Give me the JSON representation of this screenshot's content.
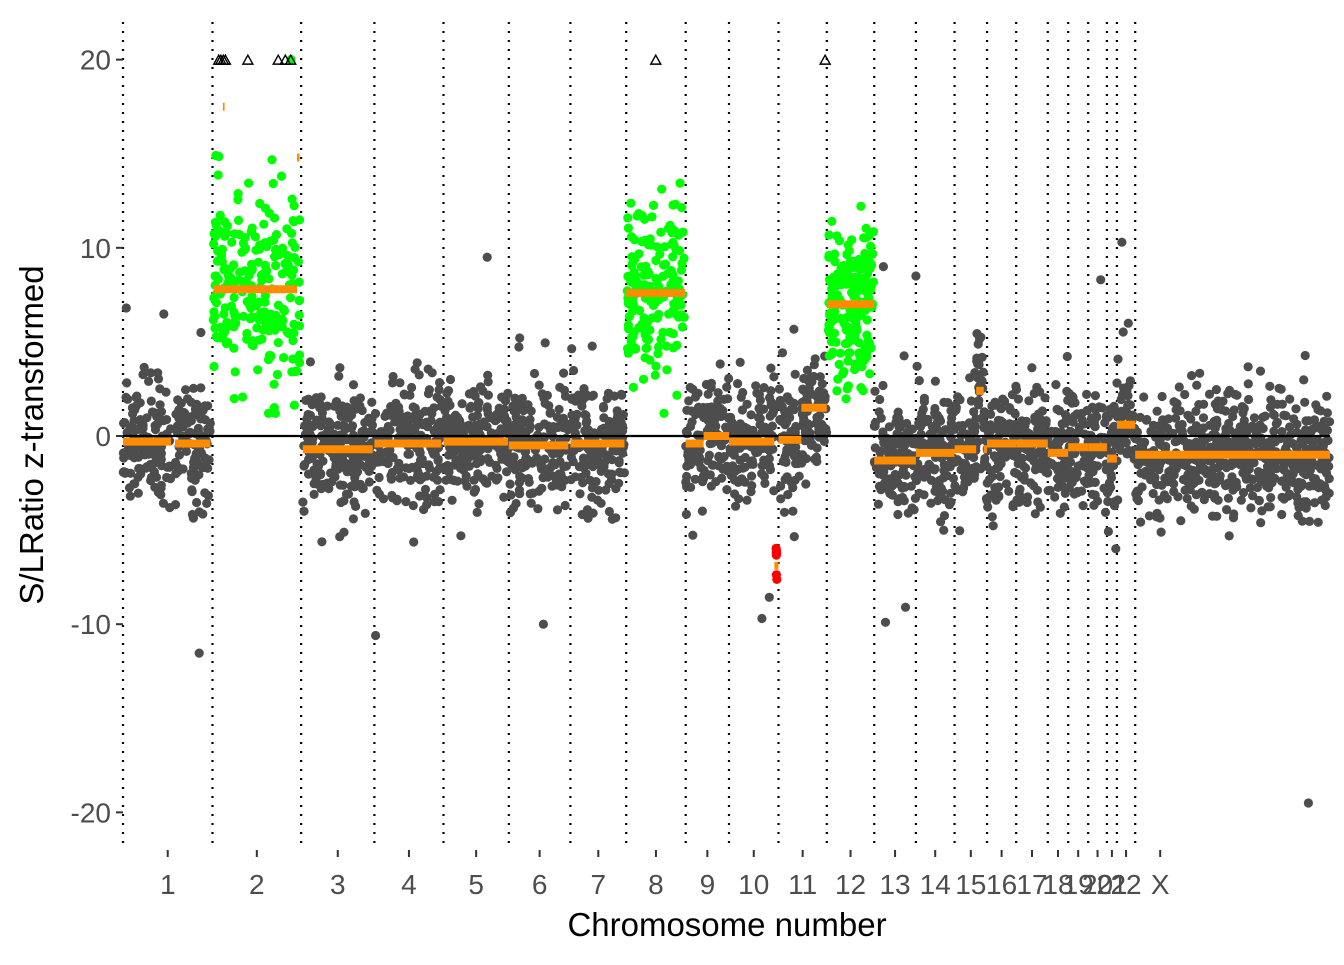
{
  "chart_data": {
    "type": "scatter",
    "title": "",
    "xlabel": "Chromosome number",
    "ylabel": "S/LRatio z-transformed",
    "ylim": [
      -22,
      22
    ],
    "y_ticks": [
      -20,
      -10,
      0,
      10,
      20
    ],
    "y_tick_labels": [
      "-20",
      "-10",
      "0",
      "10",
      "20"
    ],
    "x_span": [
      0,
      2900
    ],
    "reference_line_y": 0,
    "grid": false,
    "legend": "none",
    "colors": {
      "normal": "#4d4d4d",
      "gain": "#00ff00",
      "loss": "#ff0000",
      "segment": "#ff8c00",
      "outlier_marker": "#000000",
      "divider": "#000000"
    },
    "chromosomes": [
      {
        "label": "1",
        "start": 0,
        "end": 215
      },
      {
        "label": "2",
        "start": 215,
        "end": 428
      },
      {
        "label": "3",
        "start": 428,
        "end": 604
      },
      {
        "label": "4",
        "start": 604,
        "end": 770
      },
      {
        "label": "5",
        "start": 770,
        "end": 927
      },
      {
        "label": "6",
        "start": 927,
        "end": 1075
      },
      {
        "label": "7",
        "start": 1075,
        "end": 1209
      },
      {
        "label": "8",
        "start": 1209,
        "end": 1352
      },
      {
        "label": "9",
        "start": 1352,
        "end": 1456
      },
      {
        "label": "10",
        "start": 1456,
        "end": 1575
      },
      {
        "label": "11",
        "start": 1575,
        "end": 1691
      },
      {
        "label": "12",
        "start": 1691,
        "end": 1805
      },
      {
        "label": "13",
        "start": 1805,
        "end": 1905
      },
      {
        "label": "14",
        "start": 1905,
        "end": 1998
      },
      {
        "label": "15",
        "start": 1998,
        "end": 2076
      },
      {
        "label": "16",
        "start": 2076,
        "end": 2146
      },
      {
        "label": "17",
        "start": 2146,
        "end": 2222
      },
      {
        "label": "18",
        "start": 2222,
        "end": 2271
      },
      {
        "label": "19",
        "start": 2271,
        "end": 2319
      },
      {
        "label": "20",
        "start": 2319,
        "end": 2364
      },
      {
        "label": "21",
        "start": 2364,
        "end": 2388
      },
      {
        "label": "22",
        "start": 2388,
        "end": 2432
      },
      {
        "label": "X",
        "start": 2432,
        "end": 2900
      }
    ],
    "segments": [
      {
        "start": 0,
        "end": 115,
        "y": -0.3
      },
      {
        "start": 125,
        "end": 210,
        "y": -0.4
      },
      {
        "start": 218,
        "end": 240,
        "y": 7.8
      },
      {
        "start": 240,
        "end": 418,
        "y": 7.8
      },
      {
        "start": 240,
        "end": 244,
        "y": 17.5
      },
      {
        "start": 418,
        "end": 424,
        "y": 14.8
      },
      {
        "start": 432,
        "end": 600,
        "y": -0.7
      },
      {
        "start": 604,
        "end": 765,
        "y": -0.4
      },
      {
        "start": 770,
        "end": 925,
        "y": -0.3
      },
      {
        "start": 927,
        "end": 1070,
        "y": -0.5
      },
      {
        "start": 1075,
        "end": 1205,
        "y": -0.4
      },
      {
        "start": 1209,
        "end": 1350,
        "y": 7.6
      },
      {
        "start": 1352,
        "end": 1395,
        "y": -0.4
      },
      {
        "start": 1395,
        "end": 1456,
        "y": 0.0
      },
      {
        "start": 1456,
        "end": 1565,
        "y": -0.3
      },
      {
        "start": 1565,
        "end": 1575,
        "y": -6.9
      },
      {
        "start": 1575,
        "end": 1630,
        "y": -0.2
      },
      {
        "start": 1630,
        "end": 1691,
        "y": 1.5
      },
      {
        "start": 1691,
        "end": 1805,
        "y": 7.0
      },
      {
        "start": 1805,
        "end": 1905,
        "y": -1.3
      },
      {
        "start": 1905,
        "end": 1998,
        "y": -0.9
      },
      {
        "start": 1998,
        "end": 2050,
        "y": -0.7
      },
      {
        "start": 2050,
        "end": 2068,
        "y": 2.4
      },
      {
        "start": 2068,
        "end": 2076,
        "y": -0.7
      },
      {
        "start": 2076,
        "end": 2146,
        "y": -0.4
      },
      {
        "start": 2146,
        "end": 2222,
        "y": -0.4
      },
      {
        "start": 2222,
        "end": 2271,
        "y": -0.9
      },
      {
        "start": 2271,
        "end": 2319,
        "y": -0.6
      },
      {
        "start": 2319,
        "end": 2364,
        "y": -0.6
      },
      {
        "start": 2364,
        "end": 2388,
        "y": -1.2
      },
      {
        "start": 2388,
        "end": 2432,
        "y": 0.6
      },
      {
        "start": 2432,
        "end": 2900,
        "y": -1.0
      }
    ],
    "point_series": [
      {
        "color": "gain",
        "start": 215,
        "end": 428,
        "n": 240,
        "mean": 7.8,
        "sd": 3.8
      },
      {
        "color": "gain",
        "start": 1209,
        "end": 1352,
        "n": 170,
        "mean": 7.6,
        "sd": 3.2
      },
      {
        "color": "gain",
        "start": 1691,
        "end": 1805,
        "n": 190,
        "mean": 7.0,
        "sd": 2.7
      },
      {
        "color": "loss",
        "start": 1567,
        "end": 1573,
        "n": 7,
        "mean": -6.9,
        "sd": 1.0
      }
    ],
    "outliers_above_20": [
      {
        "chromosome": "2",
        "x": [
          230,
          235,
          241,
          246,
          300,
          373,
          390,
          403
        ]
      },
      {
        "chromosome": "8",
        "x": [
          1280
        ]
      },
      {
        "chromosome": "11",
        "x": [
          1687
        ]
      }
    ],
    "notable_points": [
      {
        "x": 8,
        "y": 6.8
      },
      {
        "x": 875,
        "y": 9.5
      },
      {
        "x": 2848,
        "y": -19.5
      },
      {
        "x": 2400,
        "y": 10.3
      },
      {
        "x": 1827,
        "y": 9.0
      },
      {
        "x": 1905,
        "y": 8.5
      },
      {
        "x": 2349,
        "y": 8.3
      },
      {
        "x": 607,
        "y": -10.6
      },
      {
        "x": 1010,
        "y": -10.0
      },
      {
        "x": 1535,
        "y": -9.7
      },
      {
        "x": 1832,
        "y": -9.9
      },
      {
        "x": 1880,
        "y": -9.1
      }
    ]
  }
}
